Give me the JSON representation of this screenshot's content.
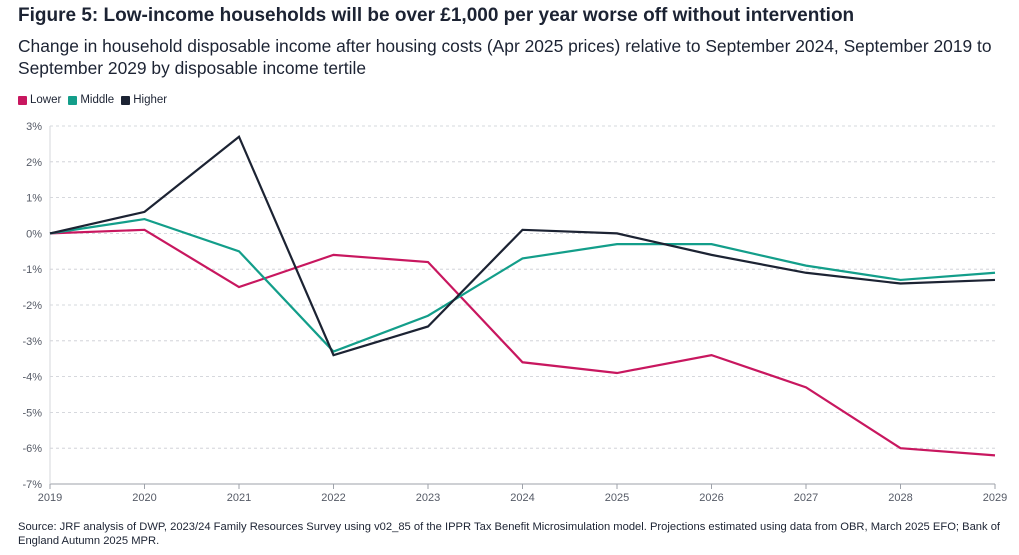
{
  "figure": {
    "title": "Figure 5: Low-income households will be over £1,000 per year worse off without intervention",
    "subtitle": "Change in household disposable income after housing costs (Apr 2025 prices) relative to September 2024, September 2019 to September 2029 by disposable income tertile",
    "source": "Source: JRF analysis of DWP, 2023/24 Family Resources Survey using v02_85 of the IPPR Tax Benefit Microsimulation model. Projections estimated using data from OBR, March 2025 EFO; Bank of England Autumn 2025 MPR."
  },
  "legend": {
    "items": [
      {
        "label": "Lower",
        "color": "#c8175f"
      },
      {
        "label": "Middle",
        "color": "#139e8a"
      },
      {
        "label": "Higher",
        "color": "#1c2333"
      }
    ]
  },
  "chart_data": {
    "type": "line",
    "title": "Figure 5: Low-income households will be over £1,000 per year worse off without intervention",
    "subtitle": "Change in household disposable income after housing costs (Apr 2025 prices) relative to September 2024, September 2019 to September 2029 by disposable income tertile",
    "x": [
      2019,
      2020,
      2021,
      2022,
      2023,
      2024,
      2025,
      2026,
      2027,
      2028,
      2029
    ],
    "x_tick_labels": [
      "2019",
      "2020",
      "2021",
      "2022",
      "2023",
      "2024",
      "2025",
      "2026",
      "2027",
      "2028",
      "2029"
    ],
    "ylim": [
      -7,
      3
    ],
    "y_ticks": [
      3,
      2,
      1,
      0,
      -1,
      -2,
      -3,
      -4,
      -5,
      -6,
      -7
    ],
    "y_tick_labels": [
      "3%",
      "2%",
      "1%",
      "0%",
      "-1%",
      "-2%",
      "-3%",
      "-4%",
      "-5%",
      "-6%",
      "-7%"
    ],
    "grid": true,
    "legend_position": "top-left",
    "series": [
      {
        "name": "Lower",
        "color": "#c8175f",
        "values": [
          0,
          0.1,
          -1.5,
          -0.6,
          -0.8,
          -3.6,
          -3.9,
          -3.4,
          -4.3,
          -6.0,
          -6.2
        ]
      },
      {
        "name": "Middle",
        "color": "#139e8a",
        "values": [
          0,
          0.4,
          -0.5,
          -3.3,
          -2.3,
          -0.7,
          -0.3,
          -0.3,
          -0.9,
          -1.3,
          -1.1
        ]
      },
      {
        "name": "Higher",
        "color": "#1c2333",
        "values": [
          0,
          0.6,
          2.7,
          -3.4,
          -2.6,
          0.1,
          0.0,
          -0.6,
          -1.1,
          -1.4,
          -1.3
        ]
      }
    ]
  }
}
